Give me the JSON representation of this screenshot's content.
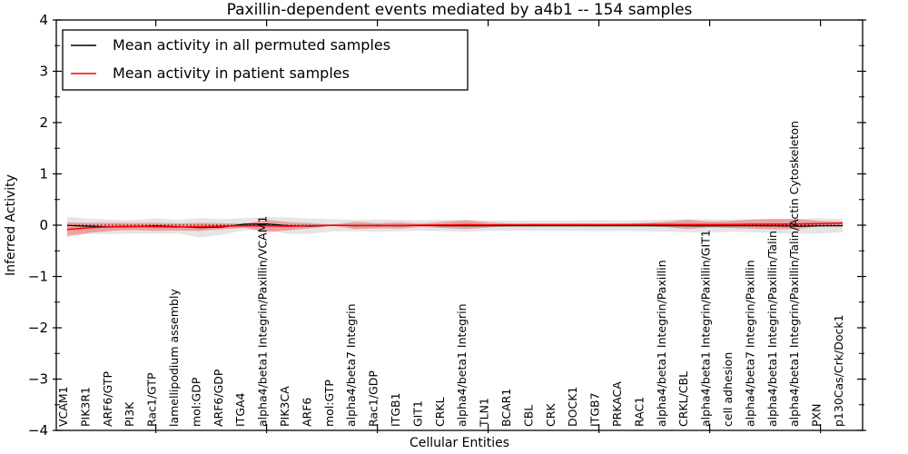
{
  "figure": {
    "title": "Paxillin-dependent events mediated by a4b1 -- 154 samples",
    "xlabel": "Cellular Entities",
    "ylabel": "Inferred Activity"
  },
  "legend": {
    "position": "upper left",
    "items": [
      {
        "label": "Mean activity in all permuted samples",
        "color": "#000000"
      },
      {
        "label": "Mean activity in patient samples",
        "color": "#ff0000"
      }
    ]
  },
  "chart_data": {
    "type": "line",
    "title": "Paxillin-dependent events mediated by a4b1 -- 154 samples",
    "xlabel": "Cellular Entities",
    "ylabel": "Inferred Activity",
    "ylim": [
      -4,
      4
    ],
    "yticks": [
      -4,
      -3,
      -2,
      -1,
      0,
      1,
      2,
      3,
      4
    ],
    "ytick_labels": [
      "−4",
      "−3",
      "−2",
      "−1",
      "0",
      "1",
      "2",
      "3",
      "4"
    ],
    "yminor_step": 0.5,
    "xtick_category_indexes": [
      4,
      9,
      14,
      19,
      24,
      29,
      34
    ],
    "grid": false,
    "legend_position": "upper left",
    "zero_line": {
      "value": 0,
      "style": "dotted",
      "color": "#000000"
    },
    "categories": [
      "VCAM1",
      "PIK3R1",
      "ARF6/GTP",
      "PI3K",
      "Rac1/GTP",
      "lamellipodium assembly",
      "mol:GDP",
      "ARF6/GDP",
      "ITGA4",
      "alpha4/beta1 Integrin/Paxillin/VCAM1",
      "PIK3CA",
      "ARF6",
      "mol:GTP",
      "alpha4/beta7 Integrin",
      "Rac1/GDP",
      "ITGB1",
      "GIT1",
      "CRKL",
      "alpha4/beta1 Integrin",
      "TLN1",
      "BCAR1",
      "CBL",
      "CRK",
      "DOCK1",
      "ITGB7",
      "PRKACA",
      "RAC1",
      "alpha4/beta1 Integrin/Paxillin",
      "CRKL/CBL",
      "alpha4/beta1 Integrin/Paxillin/GIT1",
      "cell adhesion",
      "alpha4/beta7 Integrin/Paxillin",
      "alpha4/beta1 Integrin/Paxillin/Talin",
      "alpha4/beta1 Integrin/Paxillin/Talin/Actin Cytoskeleton",
      "PXN",
      "p130Cas/Crk/Dock1"
    ],
    "series": [
      {
        "name": "Mean activity in all permuted samples",
        "color": "#000000",
        "band_color": "#999999",
        "band_opacity": 0.25,
        "values": [
          -0.005,
          -0.02,
          -0.035,
          -0.03,
          -0.015,
          -0.03,
          -0.05,
          -0.035,
          0.02,
          0.025,
          -0.01,
          -0.02,
          0,
          -0.01,
          -0.005,
          -0.01,
          -0.005,
          -0.01,
          -0.01,
          -0.01,
          -0.01,
          -0.01,
          -0.012,
          -0.012,
          -0.01,
          -0.01,
          -0.01,
          -0.01,
          -0.012,
          -0.015,
          -0.01,
          -0.012,
          -0.015,
          -0.02,
          -0.015,
          -0.01
        ],
        "band_halfwidth": [
          0.17,
          0.15,
          0.14,
          0.13,
          0.15,
          0.13,
          0.19,
          0.15,
          0.12,
          0.13,
          0.16,
          0.15,
          0.12,
          0.11,
          0.12,
          0.11,
          0.1,
          0.11,
          0.12,
          0.1,
          0.1,
          0.1,
          0.1,
          0.1,
          0.11,
          0.1,
          0.11,
          0.12,
          0.13,
          0.13,
          0.12,
          0.13,
          0.14,
          0.15,
          0.15,
          0.13
        ]
      },
      {
        "name": "Mean activity in patient samples",
        "color": "#ff0000",
        "band_color": "#ff0000",
        "band_opacity": 0.3,
        "values": [
          -0.085,
          -0.05,
          -0.03,
          -0.025,
          -0.03,
          -0.035,
          -0.03,
          -0.02,
          -0.01,
          -0.015,
          -0.02,
          -0.01,
          -0.002,
          -0.005,
          -0.01,
          -0.005,
          0,
          0.005,
          0.01,
          0.005,
          0.008,
          0.01,
          0.01,
          0.01,
          0.01,
          0.01,
          0.012,
          0.015,
          0.015,
          0.015,
          0.015,
          0.02,
          0.02,
          0.025,
          0.03,
          0.04
        ],
        "band_halfwidth": [
          0.14,
          0.1,
          0.08,
          0.07,
          0.08,
          0.07,
          0.08,
          0.06,
          0.04,
          0.12,
          0.08,
          0.05,
          0.012,
          0.07,
          0.05,
          0.06,
          0.03,
          0.06,
          0.085,
          0.05,
          0.02,
          0.018,
          0.018,
          0.02,
          0.018,
          0.02,
          0.03,
          0.05,
          0.09,
          0.055,
          0.07,
          0.09,
          0.1,
          0.095,
          0.05,
          0.03
        ]
      }
    ]
  }
}
